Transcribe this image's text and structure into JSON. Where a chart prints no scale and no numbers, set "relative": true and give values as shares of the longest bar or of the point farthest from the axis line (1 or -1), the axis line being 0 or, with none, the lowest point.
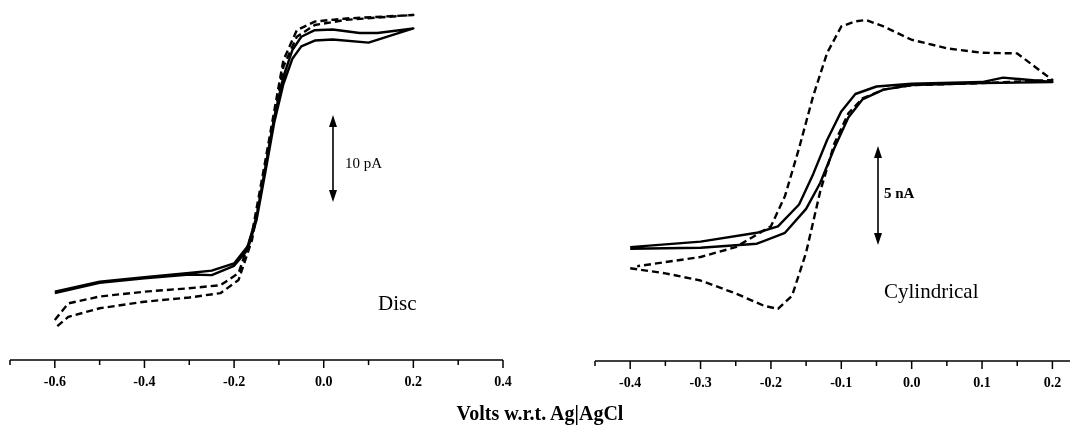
{
  "chart_data": [
    {
      "type": "line",
      "relative": true,
      "xlabel": "Volts w.r.t. Ag|AgCl",
      "xlim": [
        -0.7,
        0.4
      ],
      "xticks": [
        -0.6,
        -0.4,
        -0.2,
        {
          "value": 0,
          "label": "0.0"
        },
        0.2,
        0.4
      ],
      "annotations": [
        "10 pA",
        "Disc"
      ],
      "series": [
        {
          "color": "#000000",
          "line_style": "solid",
          "x": [
            -0.6,
            -0.5,
            -0.4,
            -0.3,
            -0.25,
            -0.2,
            -0.17,
            -0.15,
            -0.13,
            -0.11,
            -0.09,
            -0.07,
            -0.05,
            -0.02,
            0.02,
            0.08,
            0.12,
            0.2,
            0.1,
            0.02,
            -0.02,
            -0.05,
            -0.07,
            -0.09,
            -0.11,
            -0.13,
            -0.15,
            -0.17,
            -0.2,
            -0.25,
            -0.3,
            -0.4,
            -0.5,
            -0.6
          ],
          "values": [
            0.198,
            0.227,
            0.24,
            0.252,
            0.259,
            0.28,
            0.329,
            0.415,
            0.56,
            0.706,
            0.821,
            0.898,
            0.937,
            0.956,
            0.958,
            0.948,
            0.948,
            0.961,
            0.92,
            0.929,
            0.926,
            0.909,
            0.873,
            0.8,
            0.691,
            0.546,
            0.405,
            0.319,
            0.273,
            0.246,
            0.248,
            0.237,
            0.224,
            0.194
          ]
        },
        {
          "color": "#000000",
          "line_style": "dashed",
          "x": [
            -0.6,
            -0.57,
            -0.5,
            -0.4,
            -0.3,
            -0.23,
            -0.19,
            -0.16,
            -0.13,
            -0.11,
            -0.09,
            -0.06,
            -0.02,
            0.05,
            0.2,
            0.05,
            -0.02,
            -0.06,
            -0.09,
            -0.11,
            -0.13,
            -0.16,
            -0.19,
            -0.23,
            -0.3,
            -0.4,
            -0.5,
            -0.57,
            -0.6
          ],
          "values": [
            0.116,
            0.164,
            0.184,
            0.198,
            0.208,
            0.217,
            0.252,
            0.367,
            0.58,
            0.725,
            0.869,
            0.956,
            0.981,
            0.99,
            1,
            0.986,
            0.971,
            0.937,
            0.85,
            0.706,
            0.56,
            0.348,
            0.232,
            0.194,
            0.181,
            0.169,
            0.15,
            0.125,
            0.092
          ]
        }
      ]
    },
    {
      "type": "line",
      "relative": true,
      "xlim": [
        -0.45,
        0.225
      ],
      "xticks": [
        -0.4,
        -0.3,
        -0.2,
        -0.1,
        {
          "value": 0,
          "label": "0.0"
        },
        0.1,
        0.2
      ],
      "annotations": [
        "5 nA",
        "Cylindrical"
      ],
      "series": [
        {
          "color": "#000000",
          "line_style": "solid",
          "x": [
            -0.4,
            -0.3,
            -0.22,
            -0.18,
            -0.15,
            -0.13,
            -0.11,
            -0.09,
            -0.07,
            -0.04,
            0.0,
            0.1,
            0.2,
            0.13,
            0.1,
            0.0,
            -0.05,
            -0.08,
            -0.1,
            -0.12,
            -0.14,
            -0.16,
            -0.19,
            -0.22,
            -0.3,
            -0.4
          ],
          "values": [
            0.329,
            0.332,
            0.344,
            0.376,
            0.446,
            0.522,
            0.624,
            0.714,
            0.767,
            0.796,
            0.809,
            0.815,
            0.818,
            0.831,
            0.818,
            0.813,
            0.805,
            0.783,
            0.732,
            0.649,
            0.548,
            0.459,
            0.395,
            0.376,
            0.35,
            0.334
          ]
        },
        {
          "color": "#000000",
          "line_style": "dashed",
          "x": [
            -0.4,
            -0.35,
            -0.3,
            -0.25,
            -0.21,
            -0.19,
            -0.17,
            -0.15,
            -0.13,
            -0.11,
            -0.09,
            -0.07,
            -0.04,
            0.0,
            0.1,
            0.2,
            0.15,
            0.1,
            0.05,
            0.0,
            -0.04,
            -0.065,
            -0.08,
            -0.1,
            -0.12,
            -0.14,
            -0.16,
            -0.18,
            -0.2,
            -0.25,
            -0.3,
            -0.39
          ],
          "values": [
            0.272,
            0.257,
            0.236,
            0.198,
            0.162,
            0.153,
            0.191,
            0.318,
            0.497,
            0.637,
            0.726,
            0.77,
            0.796,
            0.809,
            0.815,
            0.824,
            0.902,
            0.904,
            0.917,
            0.942,
            0.981,
            1,
            0.996,
            0.981,
            0.904,
            0.777,
            0.624,
            0.484,
            0.395,
            0.334,
            0.305,
            0.278
          ]
        }
      ]
    }
  ]
}
